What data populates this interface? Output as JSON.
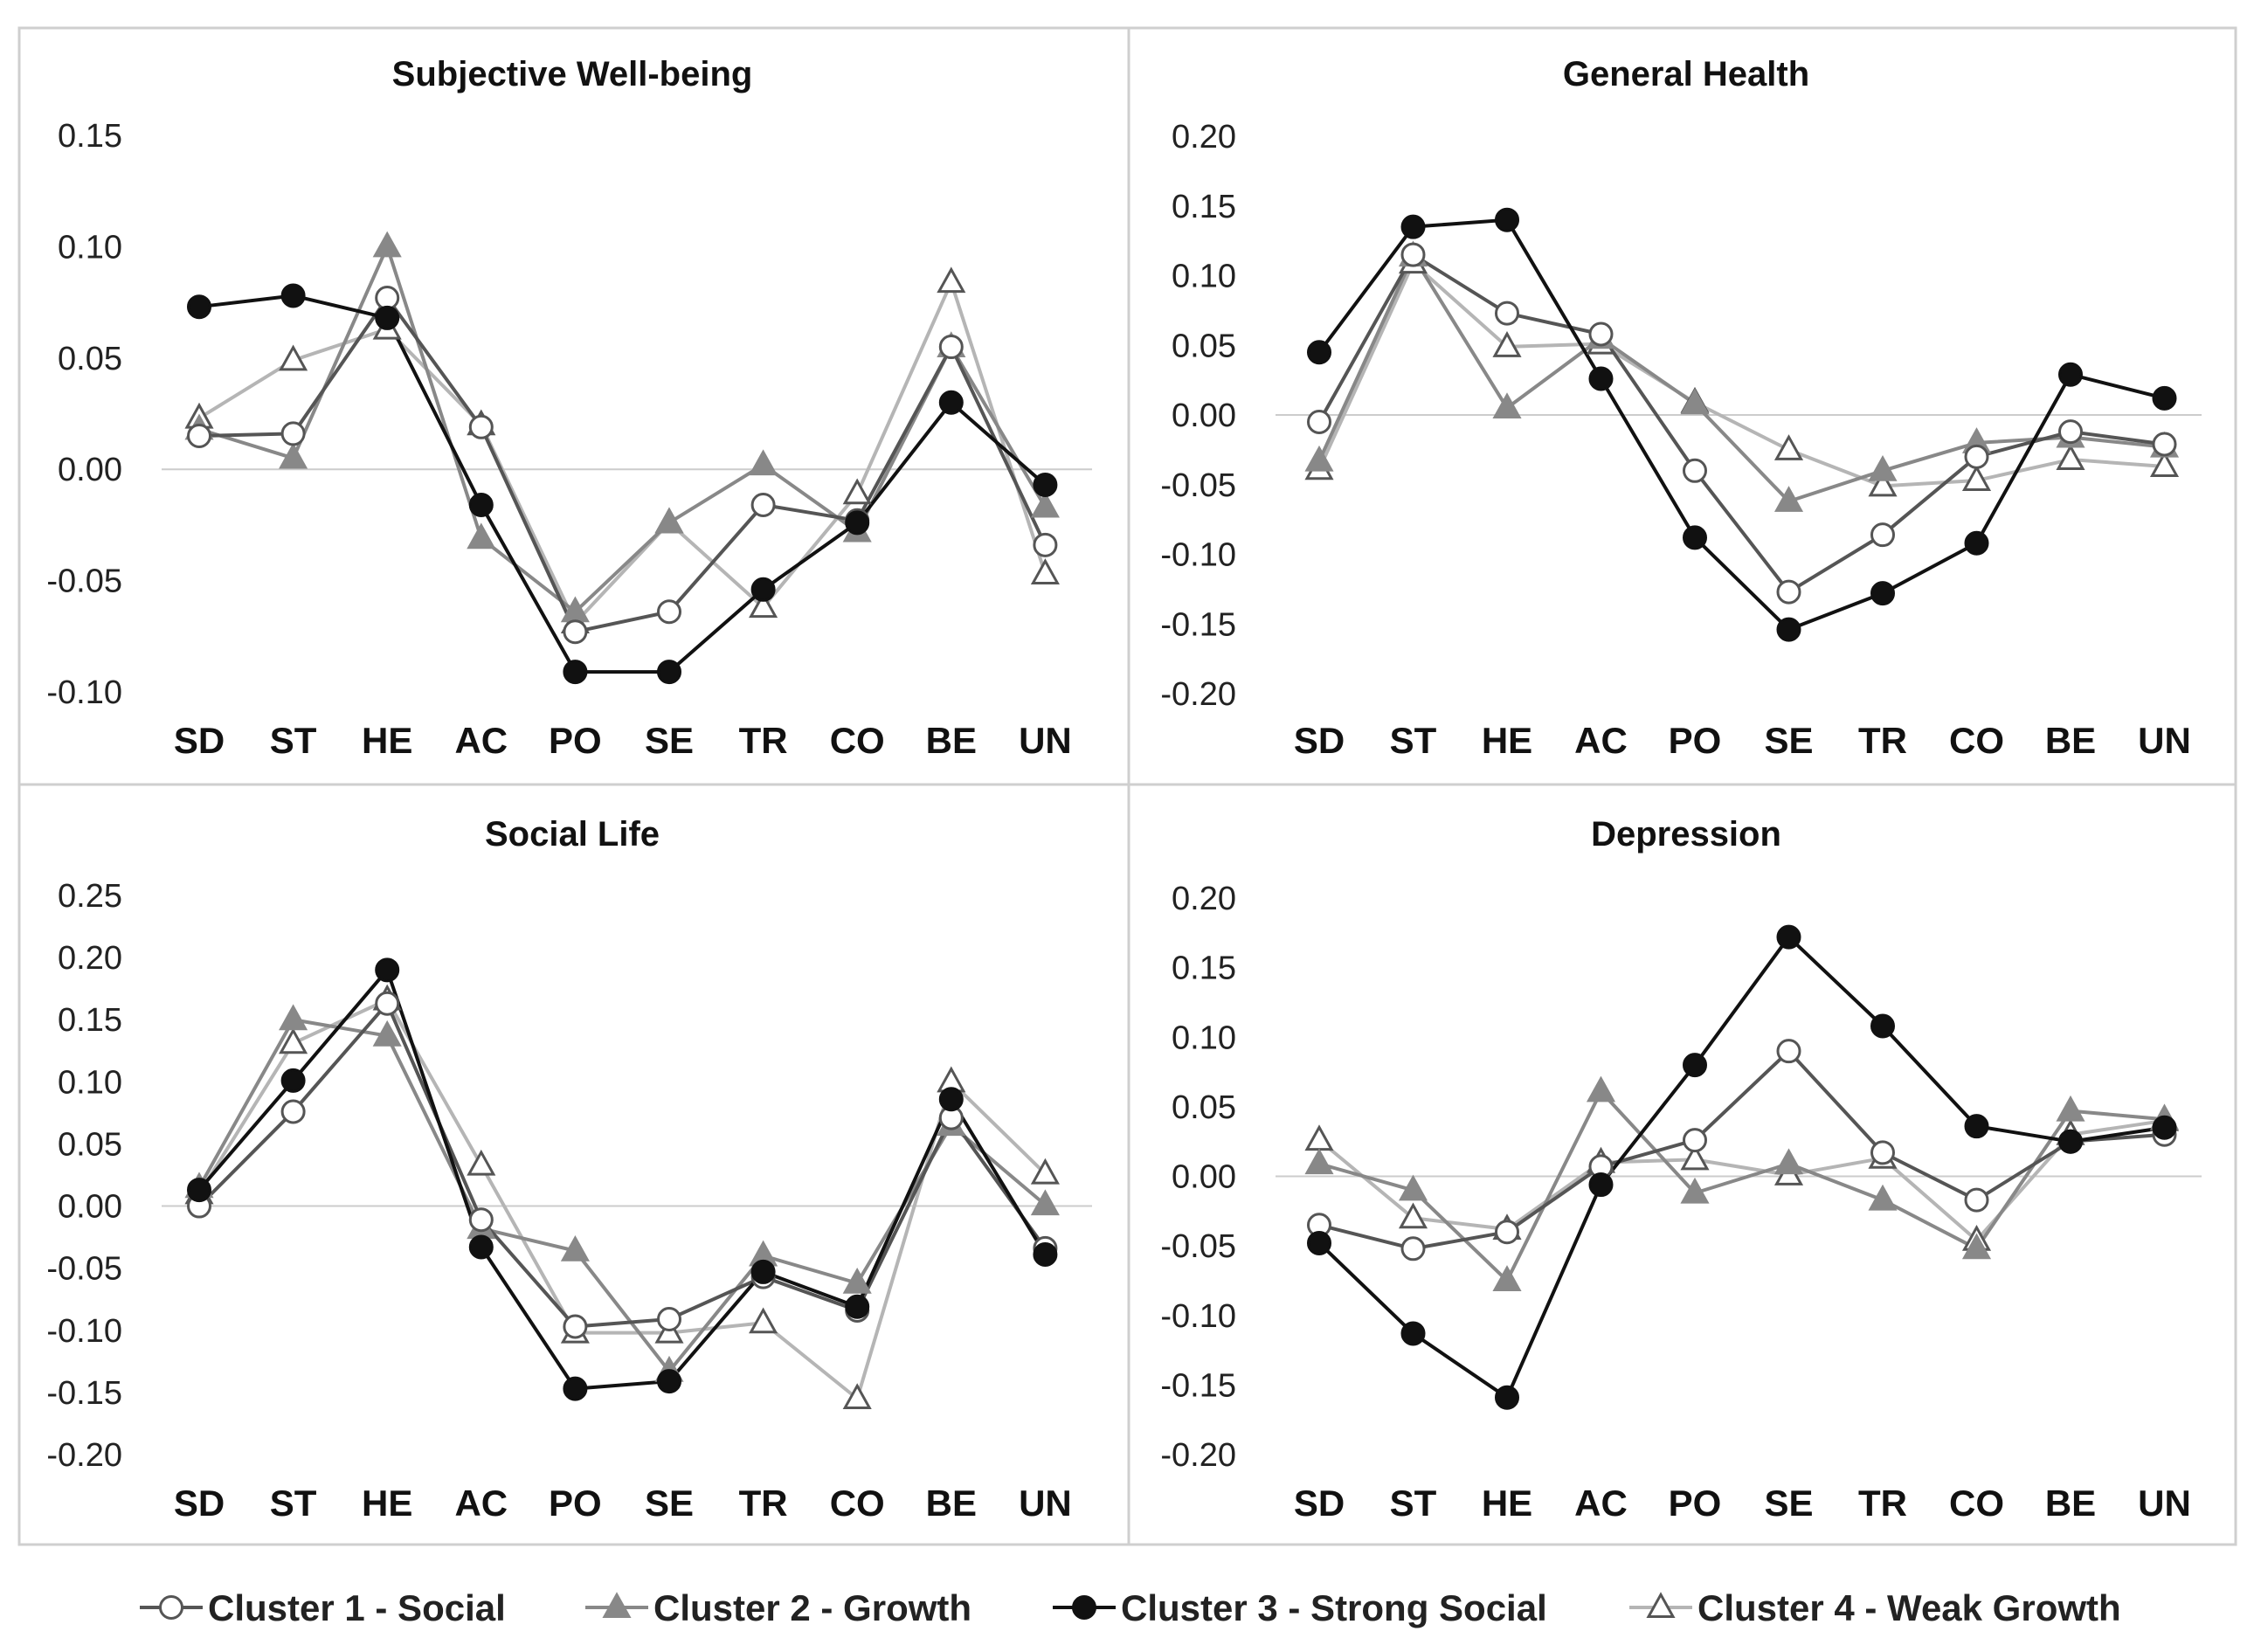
{
  "chart_data": [
    {
      "type": "line",
      "title": "Subjective Well-being",
      "categories": [
        "SD",
        "ST",
        "HE",
        "AC",
        "PO",
        "SE",
        "TR",
        "CO",
        "BE",
        "UN"
      ],
      "yticks": [
        "0.15",
        "0.10",
        "0.05",
        "0.00",
        "-0.05",
        "-0.10"
      ],
      "ylim": [
        -0.1,
        0.15
      ],
      "series": [
        {
          "name": "Cluster 1 - Social",
          "values": [
            0.015,
            0.016,
            0.077,
            0.019,
            -0.073,
            -0.064,
            -0.016,
            -0.023,
            0.055,
            -0.034
          ]
        },
        {
          "name": "Cluster 2 - Growth",
          "values": [
            0.018,
            0.005,
            0.1,
            -0.031,
            -0.064,
            -0.024,
            0.002,
            -0.028,
            0.055,
            -0.017
          ]
        },
        {
          "name": "Cluster 3 - Strong Social",
          "values": [
            0.073,
            0.078,
            0.068,
            -0.016,
            -0.091,
            -0.091,
            -0.054,
            -0.024,
            0.03,
            -0.007
          ]
        },
        {
          "name": "Cluster 4 - Weak Growth",
          "values": [
            0.023,
            0.049,
            0.063,
            0.02,
            -0.069,
            -0.024,
            -0.062,
            -0.011,
            0.084,
            -0.047
          ]
        }
      ]
    },
    {
      "type": "line",
      "title": "General Health",
      "categories": [
        "SD",
        "ST",
        "HE",
        "AC",
        "PO",
        "SE",
        "TR",
        "CO",
        "BE",
        "UN"
      ],
      "yticks": [
        "0.20",
        "0.15",
        "0.10",
        "0.05",
        "0.00",
        "-0.05",
        "-0.10",
        "-0.15",
        "-0.20"
      ],
      "ylim": [
        -0.2,
        0.2
      ],
      "series": [
        {
          "name": "Cluster 1 - Social",
          "values": [
            -0.005,
            0.115,
            0.073,
            0.058,
            -0.04,
            -0.127,
            -0.086,
            -0.03,
            -0.012,
            -0.021
          ]
        },
        {
          "name": "Cluster 2 - Growth",
          "values": [
            -0.033,
            0.114,
            0.005,
            0.055,
            0.008,
            -0.062,
            -0.04,
            -0.02,
            -0.016,
            -0.023
          ]
        },
        {
          "name": "Cluster 3 - Strong Social",
          "values": [
            0.045,
            0.135,
            0.14,
            0.026,
            -0.088,
            -0.154,
            -0.128,
            -0.092,
            0.029,
            0.012
          ]
        },
        {
          "name": "Cluster 4 - Weak Growth",
          "values": [
            -0.039,
            0.109,
            0.049,
            0.051,
            0.009,
            -0.025,
            -0.051,
            -0.047,
            -0.032,
            -0.037
          ]
        }
      ]
    },
    {
      "type": "line",
      "title": "Social Life",
      "categories": [
        "SD",
        "ST",
        "HE",
        "AC",
        "PO",
        "SE",
        "TR",
        "CO",
        "BE",
        "UN"
      ],
      "yticks": [
        "0.25",
        "0.20",
        "0.15",
        "0.10",
        "0.05",
        "0.00",
        "-0.05",
        "-0.10",
        "-0.15",
        "-0.20"
      ],
      "ylim": [
        -0.2,
        0.25
      ],
      "series": [
        {
          "name": "Cluster 1 - Social",
          "values": [
            0.0,
            0.076,
            0.163,
            -0.011,
            -0.097,
            -0.091,
            -0.057,
            -0.084,
            0.071,
            -0.034
          ]
        },
        {
          "name": "Cluster 2 - Growth",
          "values": [
            0.015,
            0.15,
            0.137,
            -0.018,
            -0.036,
            -0.133,
            -0.04,
            -0.062,
            0.065,
            0.001
          ]
        },
        {
          "name": "Cluster 3 - Strong Social",
          "values": [
            0.013,
            0.101,
            0.19,
            -0.033,
            -0.147,
            -0.141,
            -0.053,
            -0.081,
            0.086,
            -0.039
          ]
        },
        {
          "name": "Cluster 4 - Weak Growth",
          "values": [
            0.01,
            0.131,
            0.166,
            0.033,
            -0.102,
            -0.102,
            -0.094,
            -0.155,
            0.1,
            0.026
          ]
        }
      ]
    },
    {
      "type": "line",
      "title": "Depression",
      "categories": [
        "SD",
        "ST",
        "HE",
        "AC",
        "PO",
        "SE",
        "TR",
        "CO",
        "BE",
        "UN"
      ],
      "yticks": [
        "0.20",
        "0.15",
        "0.10",
        "0.05",
        "0.00",
        "-0.05",
        "-0.10",
        "-0.15",
        "-0.20"
      ],
      "ylim": [
        -0.2,
        0.2
      ],
      "series": [
        {
          "name": "Cluster 1 - Social",
          "values": [
            -0.035,
            -0.052,
            -0.04,
            0.007,
            0.026,
            0.09,
            0.017,
            -0.017,
            0.025,
            0.03
          ]
        },
        {
          "name": "Cluster 2 - Growth",
          "values": [
            0.009,
            -0.01,
            -0.075,
            0.061,
            -0.012,
            0.009,
            -0.017,
            -0.052,
            0.047,
            0.041
          ]
        },
        {
          "name": "Cluster 3 - Strong Social",
          "values": [
            -0.048,
            -0.113,
            -0.159,
            -0.006,
            0.08,
            0.172,
            0.108,
            0.036,
            0.025,
            0.035
          ]
        },
        {
          "name": "Cluster 4 - Weak Growth",
          "values": [
            0.026,
            -0.03,
            -0.038,
            0.01,
            0.012,
            0.001,
            0.013,
            -0.046,
            0.03,
            0.04
          ]
        }
      ]
    }
  ],
  "legend": [
    {
      "name": "Cluster 1 - Social",
      "color": "#555555",
      "marker": "open-circle"
    },
    {
      "name": "Cluster 2 - Growth",
      "color": "#888888",
      "marker": "filled-triangle"
    },
    {
      "name": "Cluster 3 - Strong Social",
      "color": "#111111",
      "marker": "filled-circle"
    },
    {
      "name": "Cluster 4 - Weak Growth",
      "color": "#b5b5b5",
      "marker": "open-triangle"
    }
  ]
}
